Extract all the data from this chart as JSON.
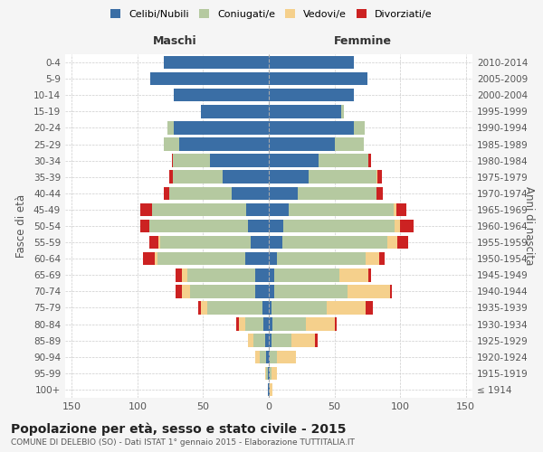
{
  "age_groups": [
    "100+",
    "95-99",
    "90-94",
    "85-89",
    "80-84",
    "75-79",
    "70-74",
    "65-69",
    "60-64",
    "55-59",
    "50-54",
    "45-49",
    "40-44",
    "35-39",
    "30-34",
    "25-29",
    "20-24",
    "15-19",
    "10-14",
    "5-9",
    "0-4"
  ],
  "birth_years": [
    "≤ 1914",
    "1915-1919",
    "1920-1924",
    "1925-1929",
    "1930-1934",
    "1935-1939",
    "1940-1944",
    "1945-1949",
    "1950-1954",
    "1955-1959",
    "1960-1964",
    "1965-1969",
    "1970-1974",
    "1975-1979",
    "1980-1984",
    "1985-1989",
    "1990-1994",
    "1995-1999",
    "2000-2004",
    "2005-2009",
    "2010-2014"
  ],
  "colors": {
    "celibi": "#3a6ea5",
    "coniugati": "#b5c9a0",
    "vedovi": "#f5d08c",
    "divorziati": "#cc2222"
  },
  "maschi": {
    "celibi": [
      1,
      1,
      2,
      3,
      4,
      5,
      10,
      10,
      18,
      14,
      16,
      17,
      28,
      35,
      45,
      68,
      72,
      52,
      72,
      90,
      80
    ],
    "coniugati": [
      0,
      1,
      5,
      9,
      14,
      42,
      50,
      52,
      67,
      69,
      75,
      72,
      48,
      38,
      28,
      12,
      5,
      0,
      0,
      0,
      0
    ],
    "vedovi": [
      0,
      1,
      3,
      4,
      5,
      5,
      6,
      4,
      2,
      1,
      0,
      0,
      0,
      0,
      0,
      0,
      0,
      0,
      0,
      0,
      0
    ],
    "divorziati": [
      0,
      0,
      0,
      0,
      2,
      2,
      5,
      5,
      9,
      7,
      7,
      9,
      4,
      3,
      1,
      0,
      0,
      0,
      0,
      0,
      0
    ]
  },
  "femmine": {
    "celibi": [
      1,
      1,
      1,
      2,
      3,
      2,
      4,
      4,
      6,
      10,
      11,
      15,
      22,
      30,
      38,
      50,
      65,
      55,
      65,
      75,
      65
    ],
    "coniugati": [
      0,
      1,
      5,
      15,
      25,
      42,
      56,
      50,
      68,
      80,
      85,
      80,
      60,
      52,
      38,
      22,
      8,
      2,
      0,
      0,
      0
    ],
    "vedovi": [
      2,
      4,
      15,
      18,
      22,
      30,
      32,
      22,
      10,
      8,
      4,
      2,
      0,
      1,
      0,
      0,
      0,
      0,
      0,
      0,
      0
    ],
    "divorziati": [
      0,
      0,
      0,
      2,
      2,
      5,
      2,
      2,
      4,
      8,
      10,
      8,
      5,
      3,
      2,
      0,
      0,
      0,
      0,
      0,
      0
    ]
  },
  "xlim": 155,
  "title": "Popolazione per età, sesso e stato civile - 2015",
  "subtitle": "COMUNE DI DELEBIO (SO) - Dati ISTAT 1° gennaio 2015 - Elaborazione TUTTITALIA.IT",
  "ylabel_left": "Fasce di età",
  "ylabel_right": "Anni di nascita",
  "xlabel_left": "Maschi",
  "xlabel_right": "Femmine",
  "legend_labels": [
    "Celibi/Nubili",
    "Coniugati/e",
    "Vedovi/e",
    "Divorziati/e"
  ],
  "bg_color": "#f5f5f5",
  "plot_bg_color": "#ffffff"
}
